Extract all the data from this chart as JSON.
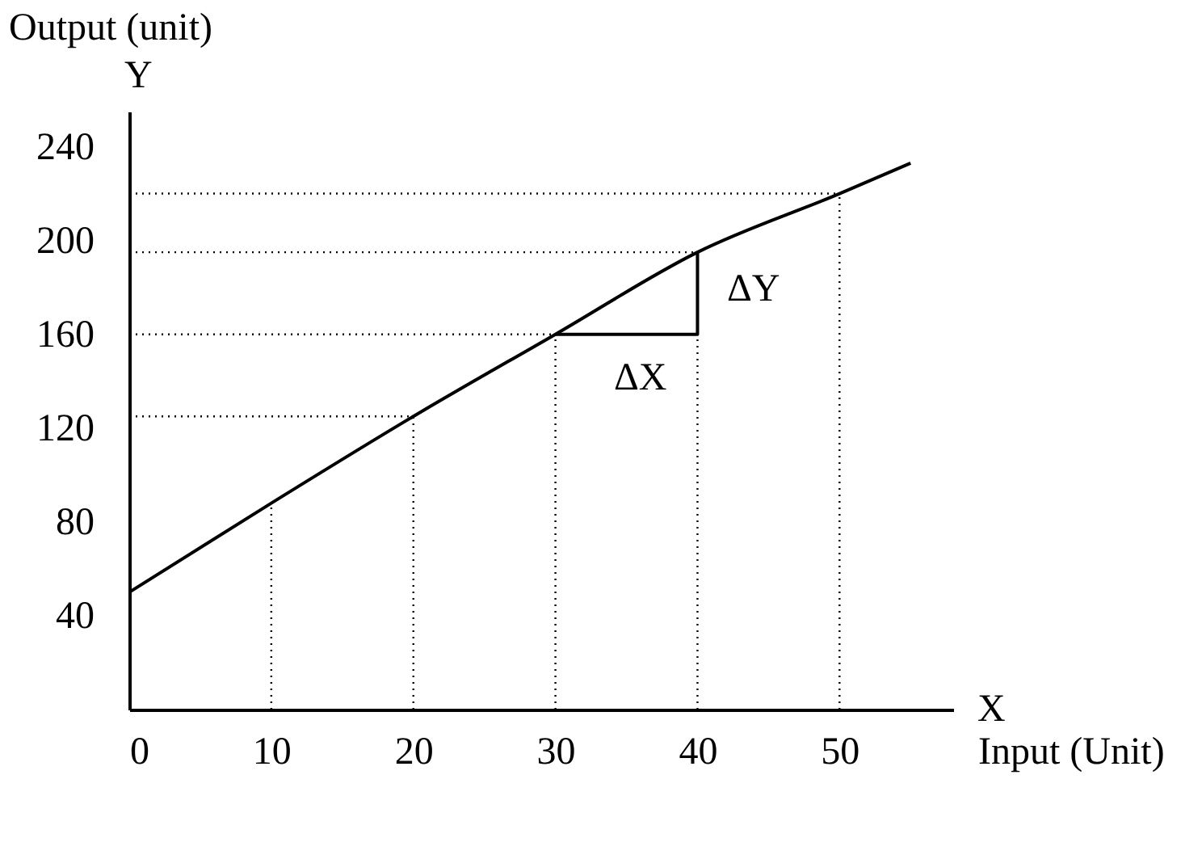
{
  "chart_data": {
    "type": "line",
    "xlabel": "Input (Unit)",
    "ylabel": "Output (unit)",
    "xlim": [
      0,
      58
    ],
    "xticks": [
      0,
      10,
      20,
      30,
      40,
      50
    ],
    "ylim": [
      0,
      255
    ],
    "yticks": [
      40,
      80,
      120,
      160,
      200,
      240
    ],
    "grid": false,
    "marker": "none",
    "annotations": [
      "Y",
      "X",
      "ΔX",
      "ΔY"
    ],
    "series": [
      {
        "color": "#000000",
        "line_style": "solid",
        "x": [
          0,
          10,
          20,
          30,
          40,
          50,
          55
        ],
        "values": [
          50,
          88,
          125,
          160,
          195,
          220,
          233
        ]
      },
      {
        "color": "#000000",
        "line_style": "solid",
        "x": [
          30,
          40,
          40
        ],
        "values": [
          160,
          160,
          195
        ]
      },
      {
        "color": "#000000",
        "line_style": "dotted",
        "x": [
          10,
          10
        ],
        "values": [
          0,
          88
        ]
      },
      {
        "color": "#000000",
        "line_style": "dotted",
        "x": [
          20,
          20
        ],
        "values": [
          0,
          125
        ]
      },
      {
        "color": "#000000",
        "line_style": "dotted",
        "x": [
          30,
          30
        ],
        "values": [
          0,
          160
        ]
      },
      {
        "color": "#000000",
        "line_style": "dotted",
        "x": [
          40,
          40
        ],
        "values": [
          0,
          160
        ]
      },
      {
        "color": "#000000",
        "line_style": "dotted",
        "x": [
          50,
          50
        ],
        "values": [
          0,
          220
        ]
      },
      {
        "color": "#000000",
        "line_style": "dotted",
        "x": [
          0,
          20
        ],
        "values": [
          125,
          125
        ]
      },
      {
        "color": "#000000",
        "line_style": "dotted",
        "x": [
          0,
          30
        ],
        "values": [
          160,
          160
        ]
      },
      {
        "color": "#000000",
        "line_style": "dotted",
        "x": [
          0,
          40
        ],
        "values": [
          195,
          195
        ]
      },
      {
        "color": "#000000",
        "line_style": "dotted",
        "x": [
          0,
          50
        ],
        "values": [
          220,
          220
        ]
      }
    ]
  }
}
